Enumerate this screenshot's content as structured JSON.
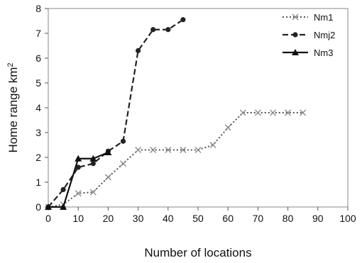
{
  "chart_data": {
    "type": "line",
    "xlabel": "Number of locations",
    "ylabel_main": "Home range km",
    "ylabel_sup": "2",
    "xlim": [
      0,
      100
    ],
    "ylim": [
      0,
      8
    ],
    "xticks": [
      "0",
      "10",
      "20",
      "30",
      "40",
      "50",
      "60",
      "70",
      "80",
      "90",
      "100"
    ],
    "yticks": [
      "0",
      "1",
      "2",
      "3",
      "4",
      "5",
      "6",
      "7",
      "8"
    ],
    "grid": false,
    "legend_position": "top-right",
    "series": [
      {
        "name": "Nm1",
        "style": "dotted",
        "marker": "x",
        "color": "#555555",
        "points": [
          [
            0,
            0
          ],
          [
            5,
            0.1
          ],
          [
            10,
            0.55
          ],
          [
            15,
            0.6
          ],
          [
            20,
            1.2
          ],
          [
            25,
            1.75
          ],
          [
            30,
            2.3
          ],
          [
            35,
            2.3
          ],
          [
            40,
            2.3
          ],
          [
            45,
            2.3
          ],
          [
            50,
            2.3
          ],
          [
            55,
            2.5
          ],
          [
            60,
            3.2
          ],
          [
            65,
            3.8
          ],
          [
            70,
            3.8
          ],
          [
            75,
            3.8
          ],
          [
            80,
            3.8
          ],
          [
            85,
            3.8
          ]
        ]
      },
      {
        "name": "Nmj2",
        "style": "dashed",
        "marker": "circle",
        "color": "#222222",
        "points": [
          [
            0,
            0
          ],
          [
            5,
            0.7
          ],
          [
            10,
            1.6
          ],
          [
            15,
            1.75
          ],
          [
            20,
            2.25
          ],
          [
            25,
            2.65
          ],
          [
            30,
            6.3
          ],
          [
            35,
            7.15
          ],
          [
            40,
            7.15
          ],
          [
            45,
            7.55
          ]
        ]
      },
      {
        "name": "Nm3",
        "style": "solid",
        "marker": "triangle",
        "color": "#111111",
        "points": [
          [
            0,
            0
          ],
          [
            5,
            0
          ],
          [
            10,
            1.95
          ],
          [
            15,
            1.95
          ],
          [
            20,
            2.2
          ]
        ]
      }
    ]
  }
}
